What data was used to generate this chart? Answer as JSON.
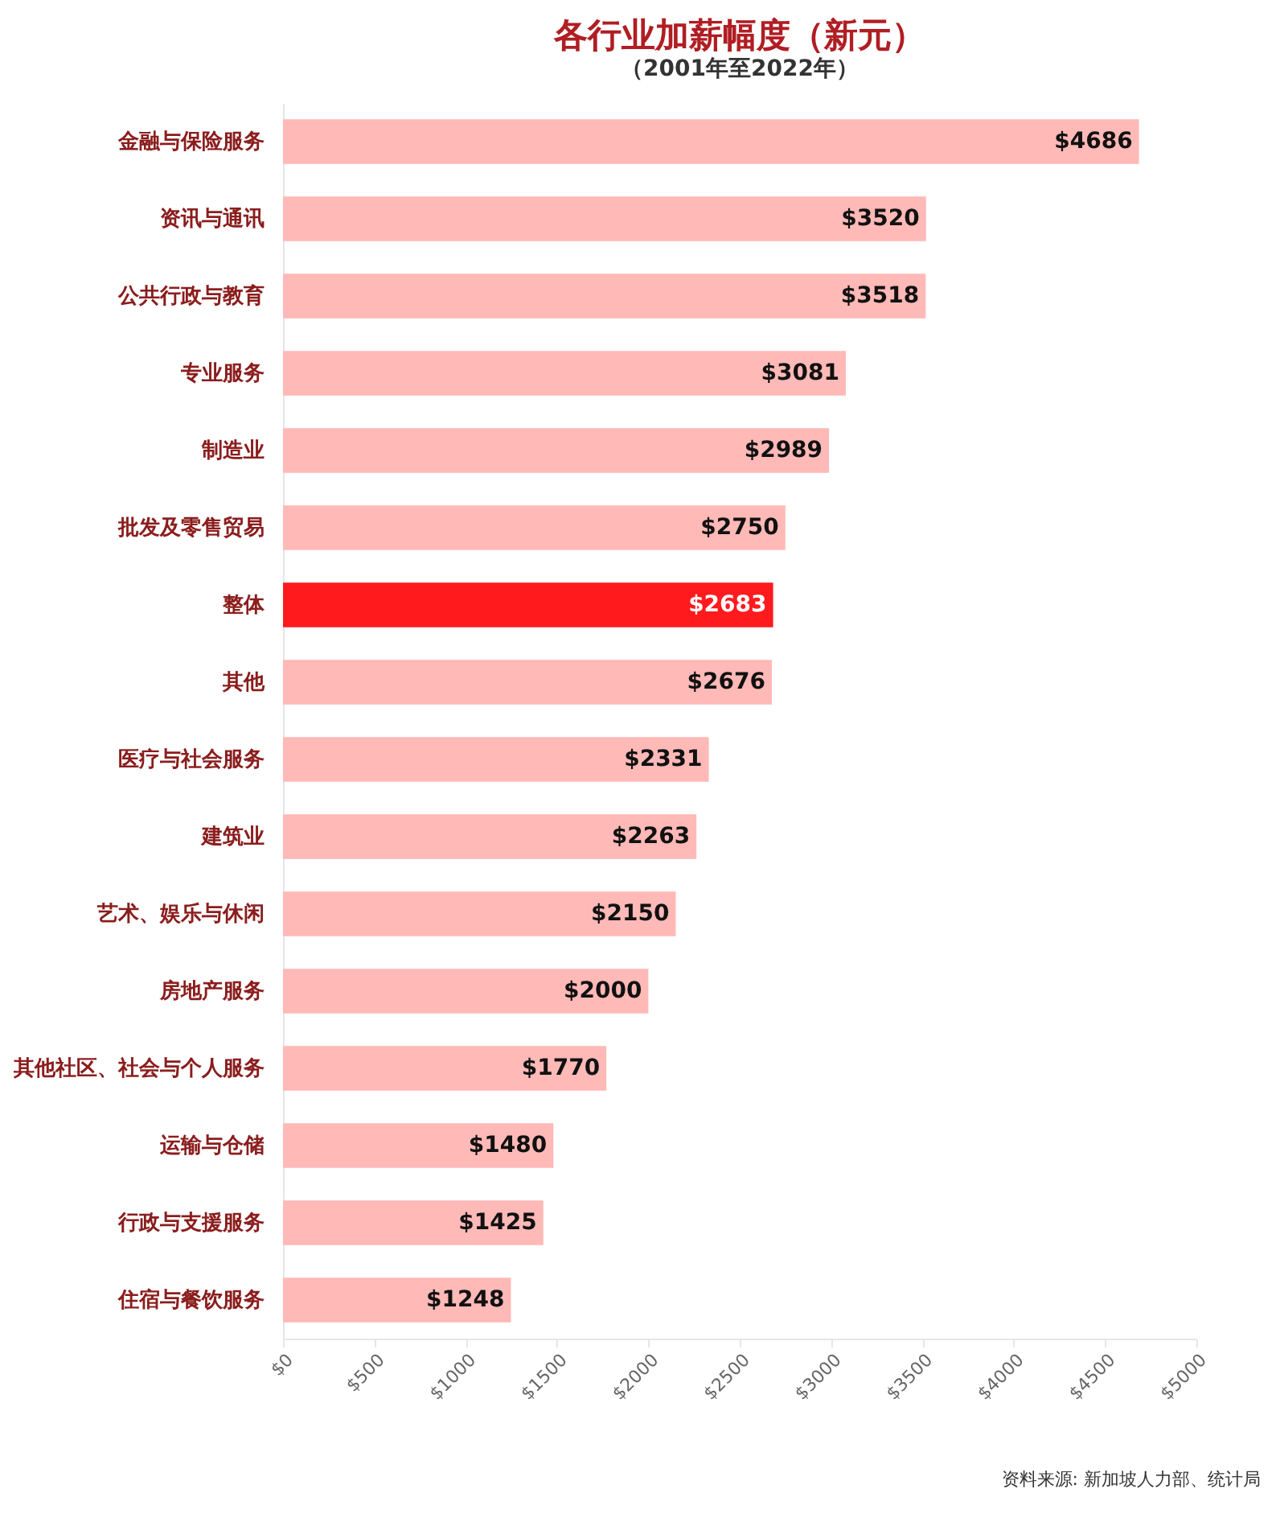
{
  "chart_data": {
    "type": "bar",
    "orientation": "horizontal",
    "title": "各行业加薪幅度（新元）",
    "subtitle": "（2001年至2022年）",
    "categories": [
      "金融与保险服务",
      "资讯与通讯",
      "公共行政与教育",
      "专业服务",
      "制造业",
      "批发及零售贸易",
      "整体",
      "其他",
      "医疗与社会服务",
      "建筑业",
      "艺术、娱乐与休闲",
      "房地产服务",
      "其他社区、社会与个人服务",
      "运输与仓储",
      "行政与支援服务",
      "住宿与餐饮服务"
    ],
    "values": [
      4686,
      3520,
      3518,
      3081,
      2989,
      2750,
      2683,
      2676,
      2331,
      2263,
      2150,
      2000,
      1770,
      1480,
      1425,
      1248
    ],
    "value_labels": [
      "$4686",
      "$3520",
      "$3518",
      "$3081",
      "$2989",
      "$2750",
      "$2683",
      "$2676",
      "$2331",
      "$2263",
      "$2150",
      "$2000",
      "$1770",
      "$1480",
      "$1425",
      "$1248"
    ],
    "colors": [
      "#ffb9b7",
      "#ffb9b7",
      "#ffb9b7",
      "#ffb9b7",
      "#ffb9b7",
      "#ffb9b7",
      "#ff1a1e",
      "#ffb9b7",
      "#ffb9b7",
      "#ffb9b7",
      "#ffb9b7",
      "#ffb9b7",
      "#ffb9b7",
      "#ffb9b7",
      "#ffb9b7",
      "#ffb9b7"
    ],
    "xlim": [
      0,
      5000
    ],
    "xticks": [
      {
        "value": 0,
        "label": "$0"
      },
      {
        "value": 500,
        "label": "$500"
      },
      {
        "value": 1000,
        "label": "$1000"
      },
      {
        "value": 1500,
        "label": "$1500"
      },
      {
        "value": 2000,
        "label": "$2000"
      },
      {
        "value": 2500,
        "label": "$2500"
      },
      {
        "value": 3000,
        "label": "$3000"
      },
      {
        "value": 3500,
        "label": "$3500"
      },
      {
        "value": 4000,
        "label": "$4000"
      },
      {
        "value": 4500,
        "label": "$4500"
      },
      {
        "value": 5000,
        "label": "$5000"
      }
    ],
    "grid": false,
    "annotations": [
      "资料来源: 新加坡人力部、统计局"
    ]
  }
}
